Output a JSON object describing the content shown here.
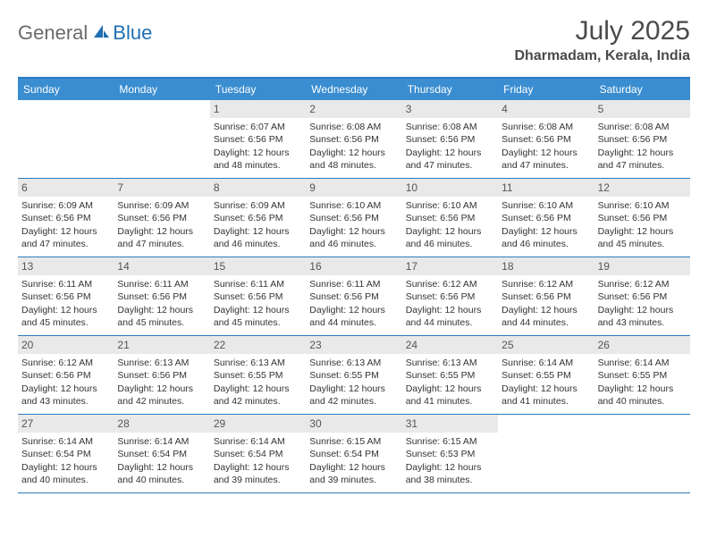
{
  "logo": {
    "text1": "General",
    "text2": "Blue"
  },
  "title": "July 2025",
  "location": "Dharmadam, Kerala, India",
  "header_bg": "#3a8dd0",
  "border_color": "#2b7bbd",
  "daynum_bg": "#e9e9e9",
  "days": [
    "Sunday",
    "Monday",
    "Tuesday",
    "Wednesday",
    "Thursday",
    "Friday",
    "Saturday"
  ],
  "cells": [
    {
      "n": "",
      "sr": "",
      "ss": "",
      "dl": ""
    },
    {
      "n": "",
      "sr": "",
      "ss": "",
      "dl": ""
    },
    {
      "n": "1",
      "sr": "Sunrise: 6:07 AM",
      "ss": "Sunset: 6:56 PM",
      "dl": "Daylight: 12 hours and 48 minutes."
    },
    {
      "n": "2",
      "sr": "Sunrise: 6:08 AM",
      "ss": "Sunset: 6:56 PM",
      "dl": "Daylight: 12 hours and 48 minutes."
    },
    {
      "n": "3",
      "sr": "Sunrise: 6:08 AM",
      "ss": "Sunset: 6:56 PM",
      "dl": "Daylight: 12 hours and 47 minutes."
    },
    {
      "n": "4",
      "sr": "Sunrise: 6:08 AM",
      "ss": "Sunset: 6:56 PM",
      "dl": "Daylight: 12 hours and 47 minutes."
    },
    {
      "n": "5",
      "sr": "Sunrise: 6:08 AM",
      "ss": "Sunset: 6:56 PM",
      "dl": "Daylight: 12 hours and 47 minutes."
    },
    {
      "n": "6",
      "sr": "Sunrise: 6:09 AM",
      "ss": "Sunset: 6:56 PM",
      "dl": "Daylight: 12 hours and 47 minutes."
    },
    {
      "n": "7",
      "sr": "Sunrise: 6:09 AM",
      "ss": "Sunset: 6:56 PM",
      "dl": "Daylight: 12 hours and 47 minutes."
    },
    {
      "n": "8",
      "sr": "Sunrise: 6:09 AM",
      "ss": "Sunset: 6:56 PM",
      "dl": "Daylight: 12 hours and 46 minutes."
    },
    {
      "n": "9",
      "sr": "Sunrise: 6:10 AM",
      "ss": "Sunset: 6:56 PM",
      "dl": "Daylight: 12 hours and 46 minutes."
    },
    {
      "n": "10",
      "sr": "Sunrise: 6:10 AM",
      "ss": "Sunset: 6:56 PM",
      "dl": "Daylight: 12 hours and 46 minutes."
    },
    {
      "n": "11",
      "sr": "Sunrise: 6:10 AM",
      "ss": "Sunset: 6:56 PM",
      "dl": "Daylight: 12 hours and 46 minutes."
    },
    {
      "n": "12",
      "sr": "Sunrise: 6:10 AM",
      "ss": "Sunset: 6:56 PM",
      "dl": "Daylight: 12 hours and 45 minutes."
    },
    {
      "n": "13",
      "sr": "Sunrise: 6:11 AM",
      "ss": "Sunset: 6:56 PM",
      "dl": "Daylight: 12 hours and 45 minutes."
    },
    {
      "n": "14",
      "sr": "Sunrise: 6:11 AM",
      "ss": "Sunset: 6:56 PM",
      "dl": "Daylight: 12 hours and 45 minutes."
    },
    {
      "n": "15",
      "sr": "Sunrise: 6:11 AM",
      "ss": "Sunset: 6:56 PM",
      "dl": "Daylight: 12 hours and 45 minutes."
    },
    {
      "n": "16",
      "sr": "Sunrise: 6:11 AM",
      "ss": "Sunset: 6:56 PM",
      "dl": "Daylight: 12 hours and 44 minutes."
    },
    {
      "n": "17",
      "sr": "Sunrise: 6:12 AM",
      "ss": "Sunset: 6:56 PM",
      "dl": "Daylight: 12 hours and 44 minutes."
    },
    {
      "n": "18",
      "sr": "Sunrise: 6:12 AM",
      "ss": "Sunset: 6:56 PM",
      "dl": "Daylight: 12 hours and 44 minutes."
    },
    {
      "n": "19",
      "sr": "Sunrise: 6:12 AM",
      "ss": "Sunset: 6:56 PM",
      "dl": "Daylight: 12 hours and 43 minutes."
    },
    {
      "n": "20",
      "sr": "Sunrise: 6:12 AM",
      "ss": "Sunset: 6:56 PM",
      "dl": "Daylight: 12 hours and 43 minutes."
    },
    {
      "n": "21",
      "sr": "Sunrise: 6:13 AM",
      "ss": "Sunset: 6:56 PM",
      "dl": "Daylight: 12 hours and 42 minutes."
    },
    {
      "n": "22",
      "sr": "Sunrise: 6:13 AM",
      "ss": "Sunset: 6:55 PM",
      "dl": "Daylight: 12 hours and 42 minutes."
    },
    {
      "n": "23",
      "sr": "Sunrise: 6:13 AM",
      "ss": "Sunset: 6:55 PM",
      "dl": "Daylight: 12 hours and 42 minutes."
    },
    {
      "n": "24",
      "sr": "Sunrise: 6:13 AM",
      "ss": "Sunset: 6:55 PM",
      "dl": "Daylight: 12 hours and 41 minutes."
    },
    {
      "n": "25",
      "sr": "Sunrise: 6:14 AM",
      "ss": "Sunset: 6:55 PM",
      "dl": "Daylight: 12 hours and 41 minutes."
    },
    {
      "n": "26",
      "sr": "Sunrise: 6:14 AM",
      "ss": "Sunset: 6:55 PM",
      "dl": "Daylight: 12 hours and 40 minutes."
    },
    {
      "n": "27",
      "sr": "Sunrise: 6:14 AM",
      "ss": "Sunset: 6:54 PM",
      "dl": "Daylight: 12 hours and 40 minutes."
    },
    {
      "n": "28",
      "sr": "Sunrise: 6:14 AM",
      "ss": "Sunset: 6:54 PM",
      "dl": "Daylight: 12 hours and 40 minutes."
    },
    {
      "n": "29",
      "sr": "Sunrise: 6:14 AM",
      "ss": "Sunset: 6:54 PM",
      "dl": "Daylight: 12 hours and 39 minutes."
    },
    {
      "n": "30",
      "sr": "Sunrise: 6:15 AM",
      "ss": "Sunset: 6:54 PM",
      "dl": "Daylight: 12 hours and 39 minutes."
    },
    {
      "n": "31",
      "sr": "Sunrise: 6:15 AM",
      "ss": "Sunset: 6:53 PM",
      "dl": "Daylight: 12 hours and 38 minutes."
    },
    {
      "n": "",
      "sr": "",
      "ss": "",
      "dl": ""
    },
    {
      "n": "",
      "sr": "",
      "ss": "",
      "dl": ""
    }
  ]
}
